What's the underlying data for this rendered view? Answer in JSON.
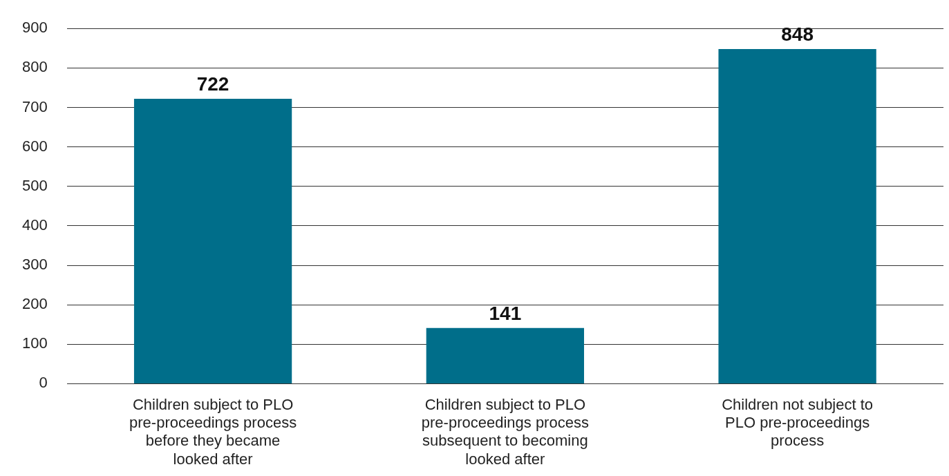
{
  "chart_data": {
    "type": "bar",
    "categories": [
      "Children subject to PLO pre-proceedings process before they became looked after",
      "Children subject to PLO pre-proceedings process subsequent to becoming looked after",
      "Children not subject to PLO pre-proceedings process"
    ],
    "values": [
      722,
      141,
      848
    ],
    "color": "#006e8a",
    "ylim": [
      0,
      900
    ],
    "yticks": [
      0,
      100,
      200,
      300,
      400,
      500,
      600,
      700,
      800,
      900
    ],
    "grid": "y",
    "data_labels": true
  }
}
